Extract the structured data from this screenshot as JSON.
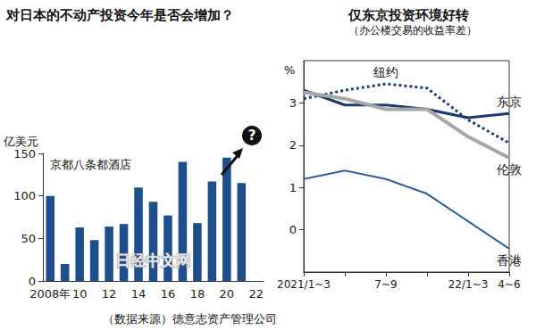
{
  "chart_data": [
    {
      "type": "bar",
      "title": "对日本的不动产投资今年是否会增加？",
      "y_label": "亿美元",
      "annotation": "京都八条都酒店",
      "question": "?",
      "categories": [
        "2008年",
        null,
        "10",
        null,
        "12",
        null,
        "14",
        null,
        "16",
        null,
        "18",
        null,
        "20",
        null,
        "22"
      ],
      "values": [
        100,
        20,
        63,
        48,
        64,
        67,
        110,
        93,
        77,
        140,
        68,
        117,
        145,
        115,
        null
      ],
      "color": "#1f4e8c",
      "ylim": [
        0,
        150
      ],
      "yticks": [
        0,
        50,
        100,
        150
      ],
      "grid": false
    },
    {
      "type": "line",
      "title": "仅东京投资环境好转",
      "subtitle": "（办公楼交易的收益率差）",
      "y_label": "%",
      "categories": [
        "2021/1~3",
        null,
        "7~9",
        null,
        "22/1~3",
        "4~6"
      ],
      "series": [
        {
          "name": "纽约",
          "color": "#1f3f73",
          "line_style": "dotted",
          "values": [
            3.1,
            3.3,
            3.45,
            3.35,
            2.6,
            2.05
          ]
        },
        {
          "name": "东京",
          "color": "#1a3a6e",
          "line_style": "solid",
          "values": [
            3.3,
            2.95,
            2.95,
            2.85,
            2.65,
            2.75
          ]
        },
        {
          "name": "伦敦",
          "color": "#a6a6a6",
          "line_style": "solid",
          "values": [
            3.25,
            3.1,
            2.85,
            2.85,
            2.2,
            1.7
          ]
        },
        {
          "name": "香港",
          "color": "#2f5f9a",
          "line_style": "solid",
          "values": [
            1.2,
            1.4,
            1.2,
            0.85,
            0.2,
            -0.45
          ]
        }
      ],
      "ylim": [
        -1,
        4
      ],
      "yticks": [
        0,
        1,
        2,
        3
      ],
      "grid": false
    }
  ],
  "source": "（数据来源）德意志资产管理公司",
  "watermark": "日经中文网"
}
